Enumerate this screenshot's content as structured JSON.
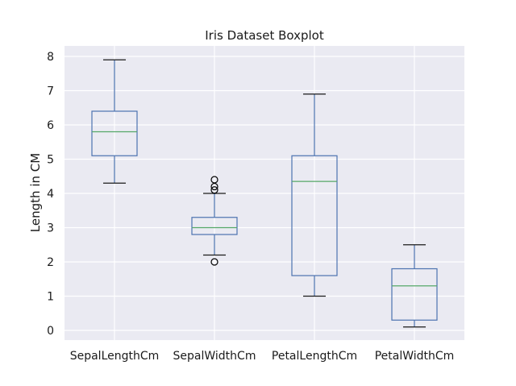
{
  "chart_data": {
    "type": "box",
    "title": "Iris Dataset Boxplot",
    "xlabel": "",
    "ylabel": "Length in CM",
    "ylim": [
      -0.3,
      8.2
    ],
    "y_ticks": [
      0,
      1,
      2,
      3,
      4,
      5,
      6,
      7,
      8
    ],
    "grid": true,
    "categories": [
      "SepalLengthCm",
      "SepalWidthCm",
      "PetalLengthCm",
      "PetalWidthCm"
    ],
    "boxes": [
      {
        "category": "SepalLengthCm",
        "whisker_low": 4.3,
        "q1": 5.1,
        "median": 5.8,
        "q3": 6.4,
        "whisker_high": 7.9,
        "outliers": []
      },
      {
        "category": "SepalWidthCm",
        "whisker_low": 2.2,
        "q1": 2.8,
        "median": 3.0,
        "q3": 3.3,
        "whisker_high": 4.0,
        "outliers": [
          2.0,
          4.1,
          4.2,
          4.4
        ]
      },
      {
        "category": "PetalLengthCm",
        "whisker_low": 1.0,
        "q1": 1.6,
        "median": 4.35,
        "q3": 5.1,
        "whisker_high": 6.9,
        "outliers": []
      },
      {
        "category": "PetalWidthCm",
        "whisker_low": 0.1,
        "q1": 0.3,
        "median": 1.3,
        "q3": 1.8,
        "whisker_high": 2.5,
        "outliers": []
      }
    ],
    "colors": {
      "background": "#eaeaf2",
      "grid": "#ffffff",
      "box": "#4c72b0",
      "median": "#55a868",
      "outlier": "#000000"
    }
  }
}
